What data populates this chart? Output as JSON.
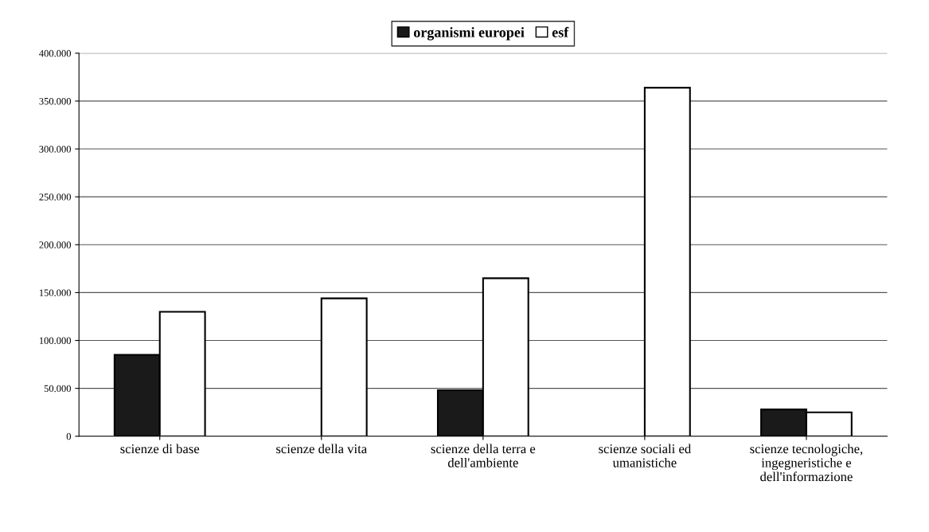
{
  "chart_data": {
    "type": "bar",
    "categories": [
      "scienze di base",
      "scienze della vita",
      "scienze della terra e dell'ambiente",
      "scienze sociali ed umanistiche",
      "scienze tecnologiche, ingegneristiche e dell'informazione"
    ],
    "series": [
      {
        "name": "organismi europei",
        "color": "#1a1a1a",
        "values": [
          85000,
          null,
          48000,
          null,
          28000
        ]
      },
      {
        "name": "esf",
        "color": "#ffffff",
        "values": [
          130000,
          144000,
          165000,
          364000,
          25000
        ]
      }
    ],
    "ylim": [
      0,
      400000
    ],
    "yticks": [
      {
        "value": 0,
        "label": "0"
      },
      {
        "value": 50000,
        "label": "50.000"
      },
      {
        "value": 100000,
        "label": "100.000"
      },
      {
        "value": 150000,
        "label": "150.000"
      },
      {
        "value": 200000,
        "label": "200.000"
      },
      {
        "value": 250000,
        "label": "250.000"
      },
      {
        "value": 300000,
        "label": "300.000"
      },
      {
        "value": 350000,
        "label": "350.000"
      },
      {
        "value": 400000,
        "label": "400.000"
      }
    ],
    "grid": "y",
    "legend": "top"
  }
}
